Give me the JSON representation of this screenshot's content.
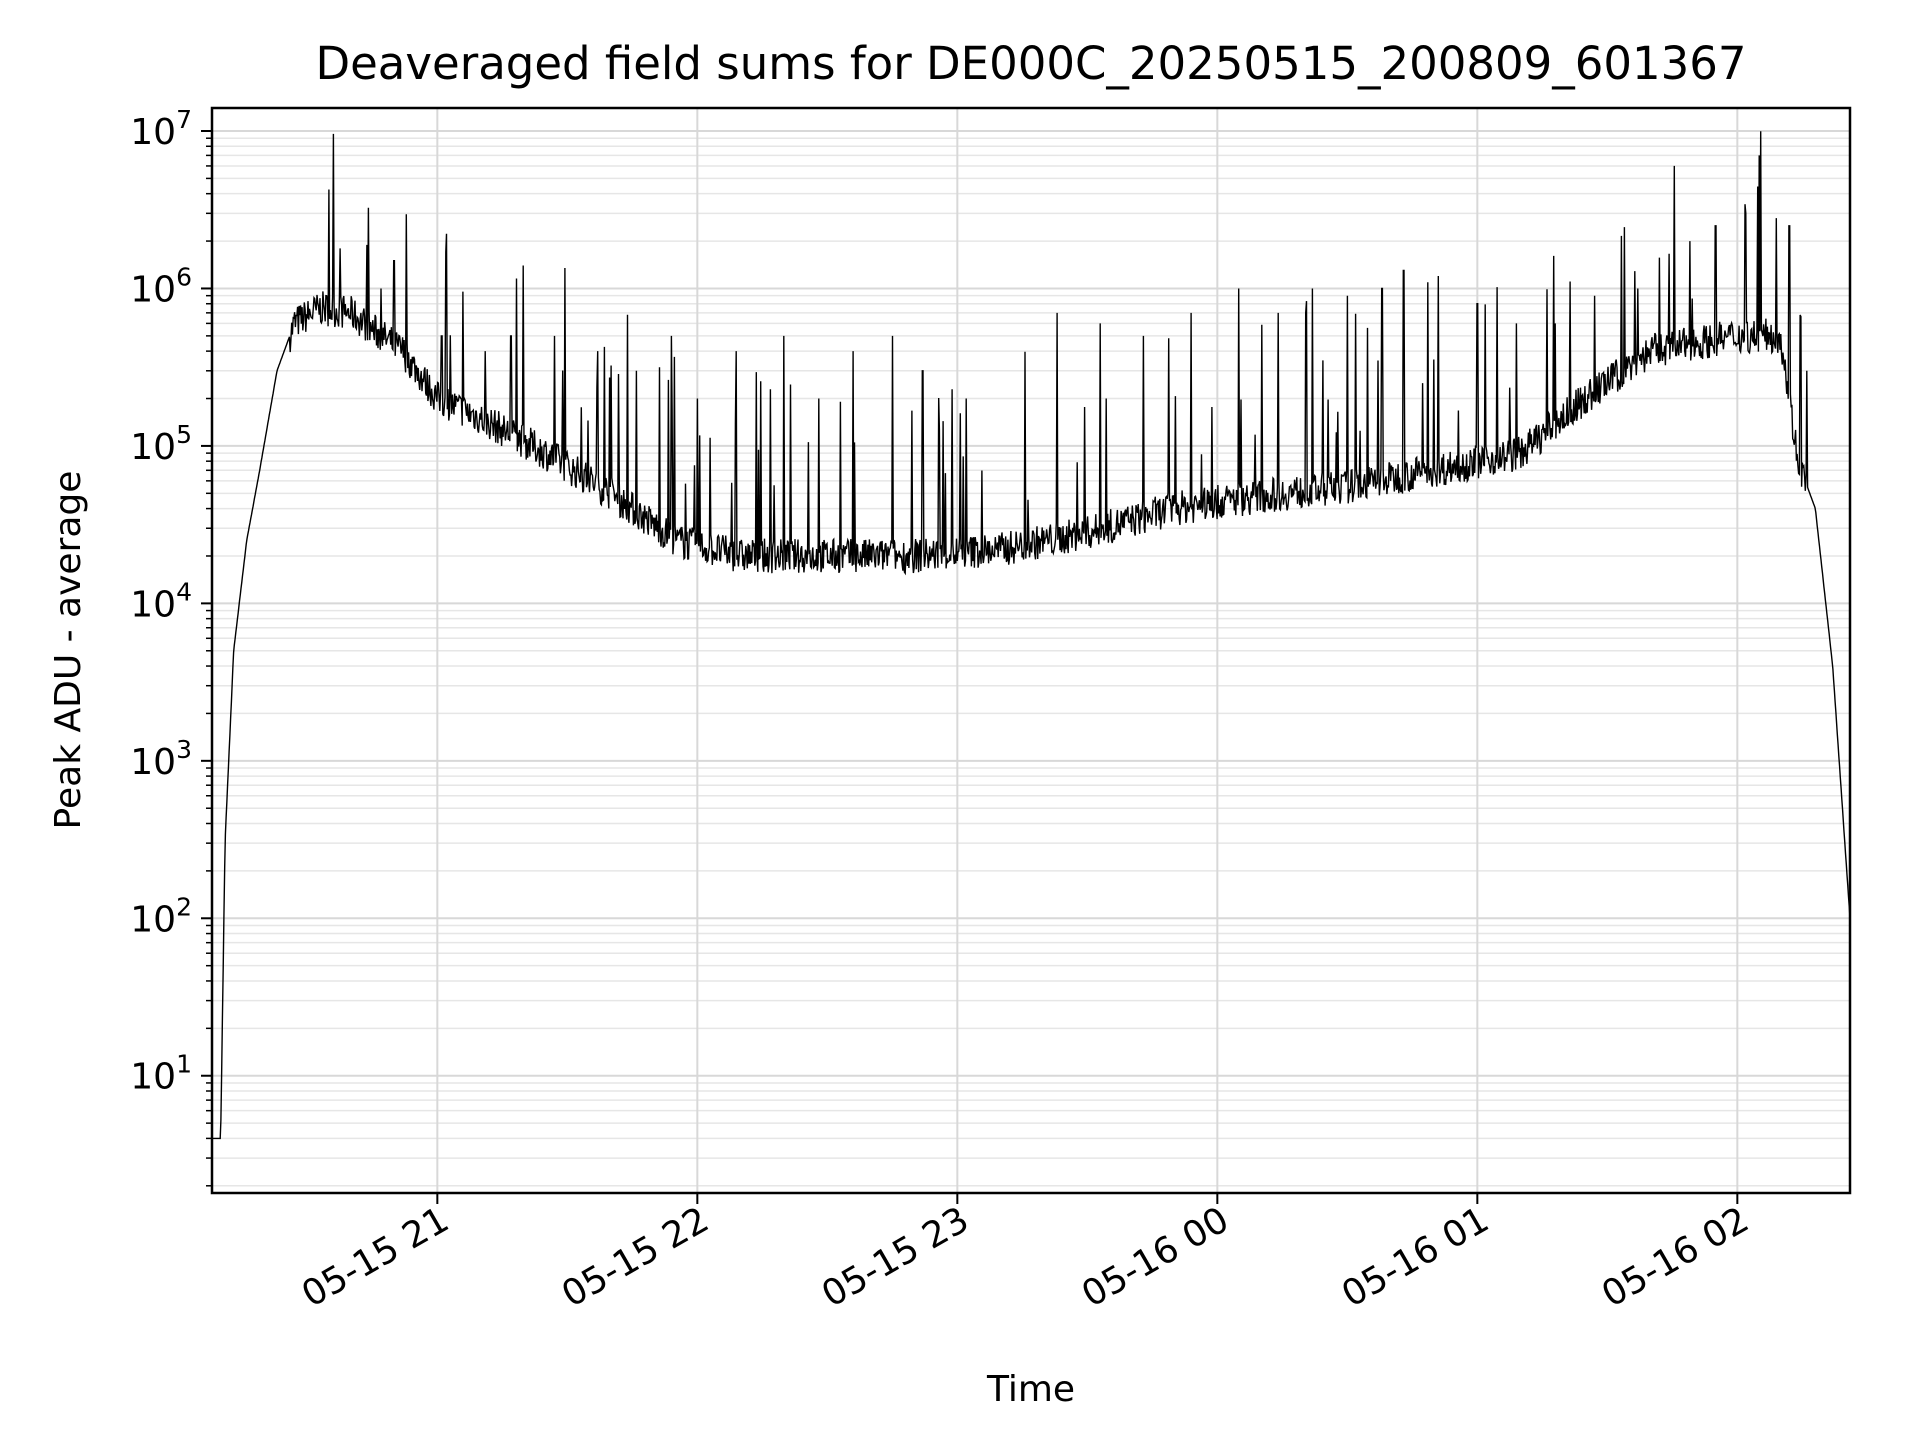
{
  "chart_data": {
    "type": "line",
    "title": "Deaveraged field sums for DE000C_20250515_200809_601367",
    "xlabel": "Time",
    "ylabel": "Peak ADU - average",
    "yscale": "log",
    "ylim": [
      1.8,
      14000000
    ],
    "xlim": [
      "05-15 20:08",
      "05-16 02:26"
    ],
    "grid": "major and minor, light grey",
    "line_color": "#000000",
    "x_ticks": [
      {
        "value": "05-15 21:00",
        "label": "05-15 21"
      },
      {
        "value": "05-15 22:00",
        "label": "05-15 22"
      },
      {
        "value": "05-15 23:00",
        "label": "05-15 23"
      },
      {
        "value": "05-16 00:00",
        "label": "05-16 00"
      },
      {
        "value": "05-16 01:00",
        "label": "05-16 01"
      },
      {
        "value": "05-16 02:00",
        "label": "05-16 02"
      }
    ],
    "y_ticks": [
      {
        "value": 10,
        "base": "10",
        "exp": "1"
      },
      {
        "value": 100,
        "base": "10",
        "exp": "2"
      },
      {
        "value": 1000,
        "base": "10",
        "exp": "3"
      },
      {
        "value": 10000,
        "base": "10",
        "exp": "4"
      },
      {
        "value": 100000,
        "base": "10",
        "exp": "5"
      },
      {
        "value": 1000000,
        "base": "10",
        "exp": "6"
      },
      {
        "value": 10000000,
        "base": "10",
        "exp": "7"
      }
    ],
    "series": [
      {
        "baseline": [
          {
            "x": "05-15 20:08",
            "y": 4
          },
          {
            "x": "05-15 20:10",
            "y": 4
          },
          {
            "x": "05-15 20:11",
            "y": 300
          },
          {
            "x": "05-15 20:13",
            "y": 5000
          },
          {
            "x": "05-15 20:16",
            "y": 25000
          },
          {
            "x": "05-15 20:19",
            "y": 70000
          },
          {
            "x": "05-15 20:23",
            "y": 300000
          },
          {
            "x": "05-15 20:27",
            "y": 600000
          },
          {
            "x": "05-15 20:33",
            "y": 750000
          },
          {
            "x": "05-15 20:40",
            "y": 700000
          },
          {
            "x": "05-15 20:45",
            "y": 550000
          },
          {
            "x": "05-15 20:52",
            "y": 400000
          },
          {
            "x": "05-15 21:00",
            "y": 200000
          },
          {
            "x": "05-15 21:10",
            "y": 150000
          },
          {
            "x": "05-15 21:25",
            "y": 90000
          },
          {
            "x": "05-15 21:40",
            "y": 50000
          },
          {
            "x": "05-15 21:55",
            "y": 25000
          },
          {
            "x": "05-15 22:10",
            "y": 20000
          },
          {
            "x": "05-15 22:30",
            "y": 20000
          },
          {
            "x": "05-15 22:50",
            "y": 20000
          },
          {
            "x": "05-15 23:10",
            "y": 22000
          },
          {
            "x": "05-15 23:30",
            "y": 28000
          },
          {
            "x": "05-15 23:50",
            "y": 40000
          },
          {
            "x": "05-16 00:10",
            "y": 48000
          },
          {
            "x": "05-16 00:30",
            "y": 55000
          },
          {
            "x": "05-16 00:50",
            "y": 70000
          },
          {
            "x": "05-16 01:10",
            "y": 90000
          },
          {
            "x": "05-16 01:25",
            "y": 200000
          },
          {
            "x": "05-16 01:40",
            "y": 400000
          },
          {
            "x": "05-16 02:00",
            "y": 500000
          },
          {
            "x": "05-16 02:10",
            "y": 500000
          },
          {
            "x": "05-16 02:14",
            "y": 80000
          },
          {
            "x": "05-16 02:18",
            "y": 40000
          },
          {
            "x": "05-16 02:22",
            "y": 4000
          },
          {
            "x": "05-16 02:26",
            "y": 100
          }
        ],
        "spikes": [
          {
            "x": "05-15 20:47",
            "y": 1000000
          },
          {
            "x": "05-15 20:50",
            "y": 1500000
          },
          {
            "x": "05-15 21:01",
            "y": 500000
          },
          {
            "x": "05-15 21:11",
            "y": 400000
          },
          {
            "x": "05-15 21:17",
            "y": 500000
          },
          {
            "x": "05-15 21:27",
            "y": 500000
          },
          {
            "x": "05-15 21:37",
            "y": 400000
          },
          {
            "x": "05-15 21:46",
            "y": 300000
          },
          {
            "x": "05-15 21:54",
            "y": 500000
          },
          {
            "x": "05-15 22:00",
            "y": 200000
          },
          {
            "x": "05-15 22:09",
            "y": 400000
          },
          {
            "x": "05-15 22:20",
            "y": 500000
          },
          {
            "x": "05-15 22:28",
            "y": 200000
          },
          {
            "x": "05-15 22:36",
            "y": 400000
          },
          {
            "x": "05-15 22:45",
            "y": 500000
          },
          {
            "x": "05-15 22:52",
            "y": 300000
          },
          {
            "x": "05-15 23:02",
            "y": 200000
          },
          {
            "x": "05-15 23:23",
            "y": 700000
          },
          {
            "x": "05-15 23:33",
            "y": 600000
          },
          {
            "x": "05-15 23:43",
            "y": 500000
          },
          {
            "x": "05-15 23:54",
            "y": 700000
          },
          {
            "x": "05-16 00:05",
            "y": 1000000
          },
          {
            "x": "05-16 00:14",
            "y": 700000
          },
          {
            "x": "05-16 00:22",
            "y": 1000000
          },
          {
            "x": "05-16 00:30",
            "y": 900000
          },
          {
            "x": "05-16 00:38",
            "y": 1000000
          },
          {
            "x": "05-16 00:43",
            "y": 1300000
          },
          {
            "x": "05-16 00:51",
            "y": 1200000
          },
          {
            "x": "05-16 01:00",
            "y": 800000
          },
          {
            "x": "05-16 01:09",
            "y": 600000
          },
          {
            "x": "05-16 01:18",
            "y": 600000
          },
          {
            "x": "05-16 01:27",
            "y": 900000
          },
          {
            "x": "05-16 01:37",
            "y": 1000000
          },
          {
            "x": "05-16 01:49",
            "y": 2000000
          },
          {
            "x": "05-16 01:55",
            "y": 2500000
          },
          {
            "x": "05-16 02:02",
            "y": 3000000
          },
          {
            "x": "05-16 02:05",
            "y": 7000000
          },
          {
            "x": "05-16 02:09",
            "y": 2800000
          },
          {
            "x": "05-16 02:12",
            "y": 2500000
          },
          {
            "x": "05-16 02:16",
            "y": 300000
          }
        ]
      }
    ]
  }
}
